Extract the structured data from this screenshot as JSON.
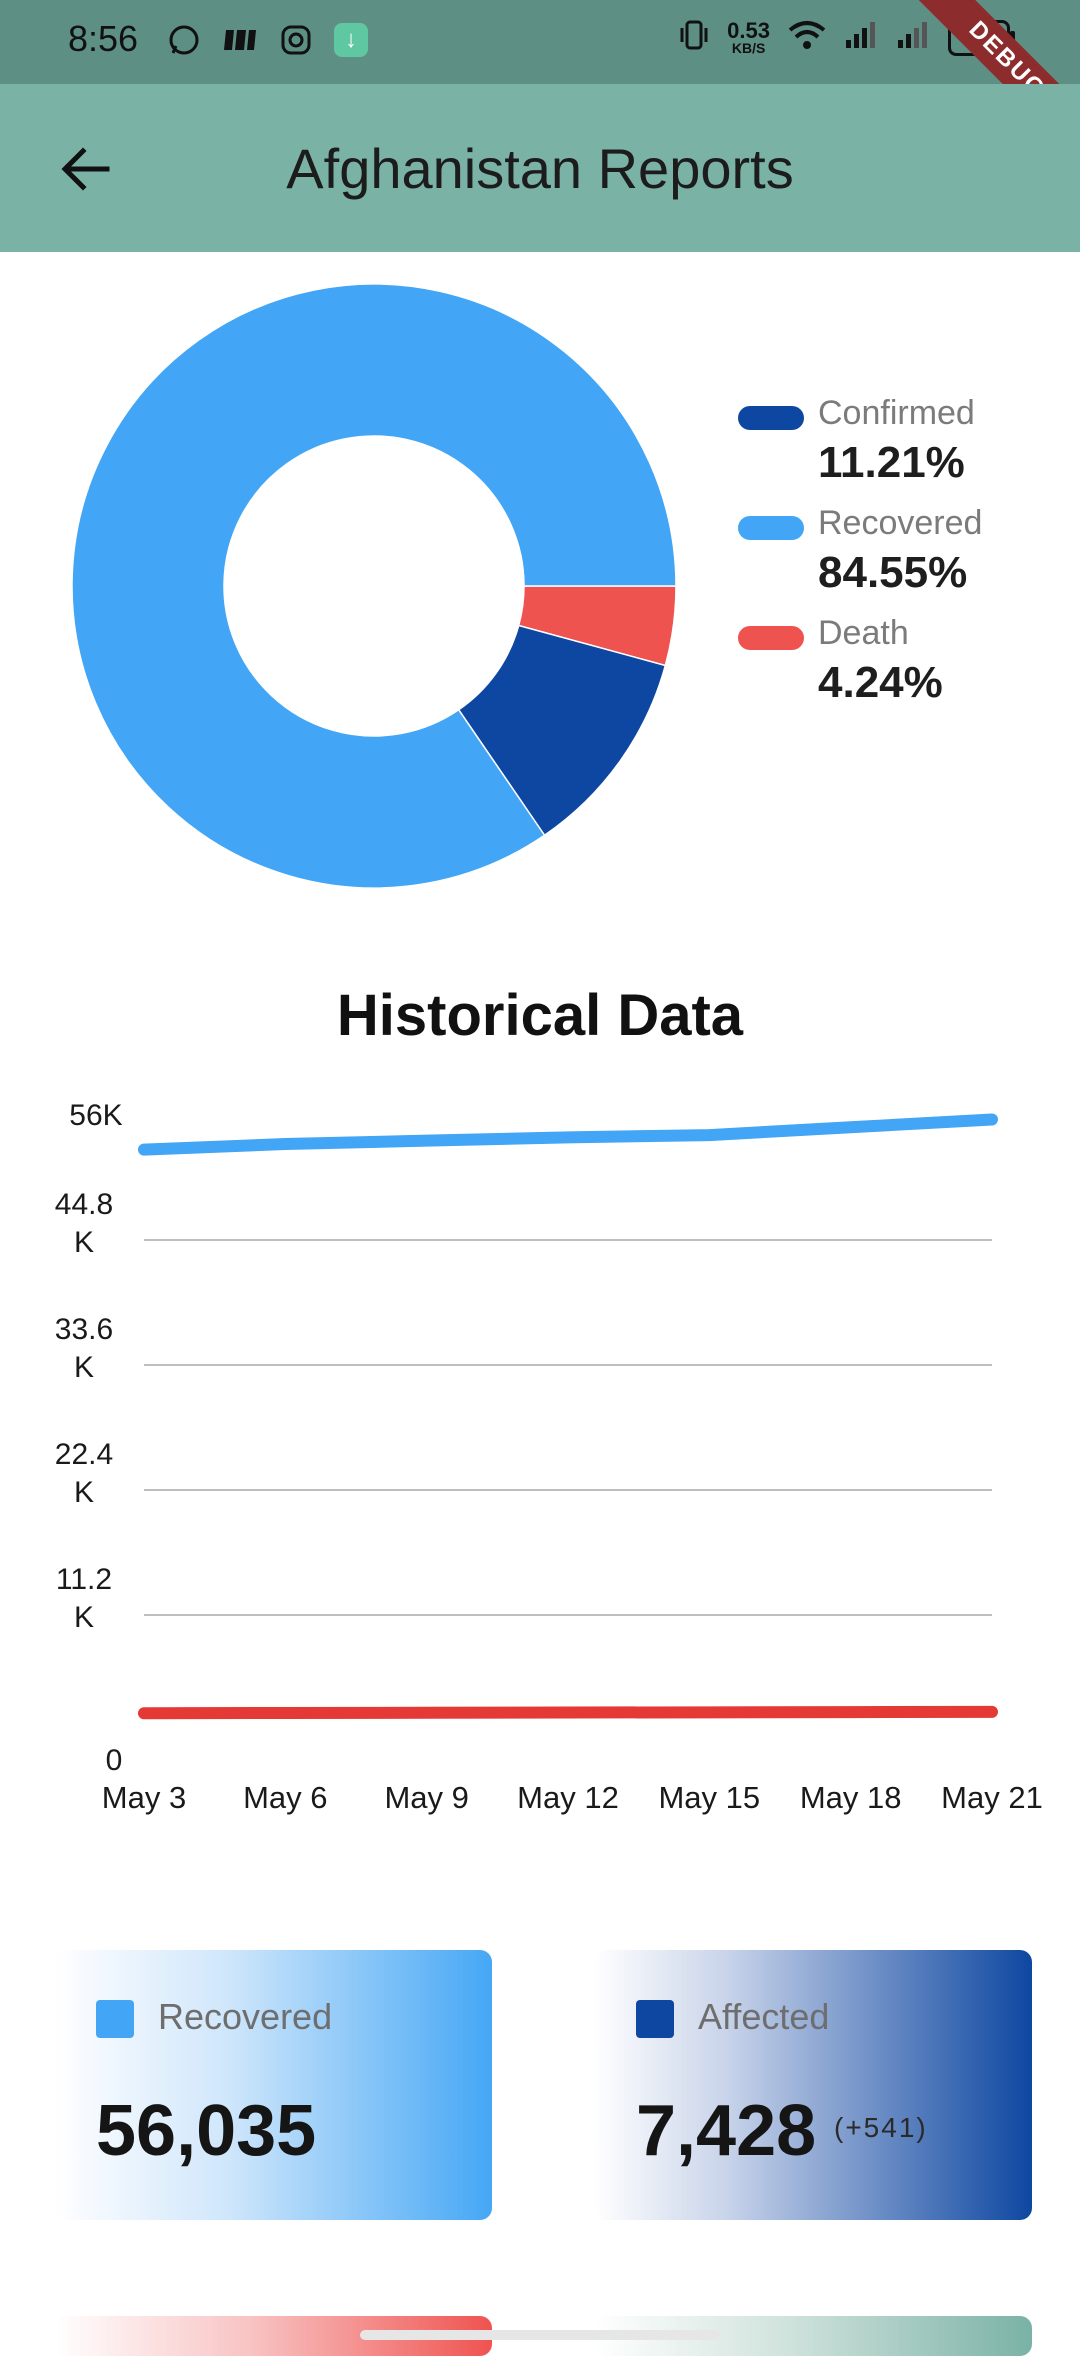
{
  "status_bar": {
    "time": "8:56",
    "net_speed": "0.53",
    "net_unit": "KB/S",
    "battery": "50",
    "debug_label": "DEBUG"
  },
  "app_bar": {
    "title": "Afghanistan Reports",
    "back_icon": "arrow-left-icon"
  },
  "pie": {
    "legend": [
      {
        "label": "Confirmed",
        "value": "11.21%",
        "color": "#0d47a1"
      },
      {
        "label": "Recovered",
        "value": "84.55%",
        "color": "#42a5f5"
      },
      {
        "label": "Death",
        "value": "4.24%",
        "color": "#ef5350"
      }
    ]
  },
  "history": {
    "title": "Historical Data"
  },
  "chart_data": [
    {
      "type": "pie",
      "categories": [
        "Confirmed",
        "Recovered",
        "Death"
      ],
      "values": [
        11.21,
        84.55,
        4.24
      ],
      "colors": [
        "#0d47a1",
        "#42a5f5",
        "#ef5350"
      ]
    },
    {
      "type": "line",
      "title": "Historical Data",
      "x_ticks": [
        "May 3",
        "May 6",
        "May 9",
        "May 12",
        "May 15",
        "May 18",
        "May 21"
      ],
      "y_ticks": [
        "0",
        "11.2\nK",
        "22.4\nK",
        "33.6\nK",
        "44.8\nK",
        "56K"
      ],
      "ylim": [
        0,
        56000
      ],
      "grid": true,
      "series": [
        {
          "color": "#42a5f5",
          "x": [
            3,
            6,
            9,
            12,
            15,
            18,
            21
          ],
          "values": [
            52900,
            53400,
            53700,
            54000,
            54200,
            54900,
            55600
          ]
        },
        {
          "color": "#e53935",
          "x": [
            3,
            6,
            9,
            12,
            15,
            18,
            21
          ],
          "values": [
            2400,
            2420,
            2440,
            2460,
            2480,
            2500,
            2520
          ]
        }
      ]
    }
  ],
  "cards": {
    "recovered": {
      "label": "Recovered",
      "value": "56,035",
      "color": "#42a5f5"
    },
    "affected": {
      "label": "Affected",
      "value": "7,428",
      "delta": "(+541)",
      "color": "#0d47a1"
    }
  }
}
